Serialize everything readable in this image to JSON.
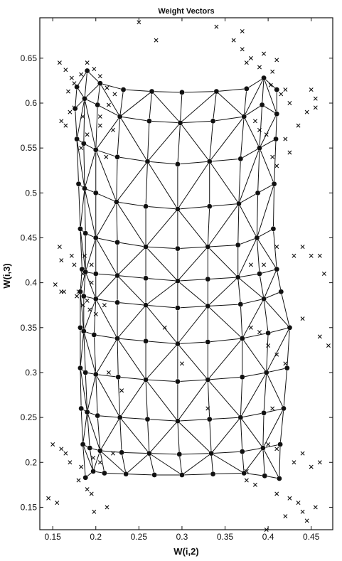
{
  "chart_data": {
    "type": "scatter",
    "title": "Weight Vectors",
    "xlabel": "W(i,2)",
    "ylabel": "W(i,3)",
    "xlim": [
      0.135,
      0.475
    ],
    "ylim": [
      0.125,
      0.695
    ],
    "xticks": [
      0.15,
      0.2,
      0.25,
      0.3,
      0.35,
      0.4,
      0.45
    ],
    "xtick_labels": [
      "0.15",
      "0.2",
      "0.25",
      "0.3",
      "0.35",
      "0.4",
      "0.45"
    ],
    "yticks": [
      0.15,
      0.2,
      0.25,
      0.3,
      0.35,
      0.4,
      0.45,
      0.5,
      0.55,
      0.6,
      0.65
    ],
    "ytick_labels": [
      "0.15",
      "0.2",
      "0.25",
      "0.3",
      "0.35",
      "0.4",
      "0.45",
      "0.5",
      "0.55",
      "0.6",
      "0.65"
    ],
    "grid": false,
    "colors": {
      "ink": "#111111",
      "background": "#ffffff"
    },
    "series": [
      {
        "marker": "x",
        "x": [
          0.158,
          0.165,
          0.172,
          0.168,
          0.175,
          0.183,
          0.19,
          0.198,
          0.205,
          0.213,
          0.222,
          0.215,
          0.175,
          0.185,
          0.205,
          0.205,
          0.19,
          0.16,
          0.165,
          0.17,
          0.178,
          0.183,
          0.212,
          0.22,
          0.158,
          0.16,
          0.172,
          0.185,
          0.195,
          0.18,
          0.19,
          0.163,
          0.175,
          0.187,
          0.195,
          0.153,
          0.16,
          0.178,
          0.185,
          0.193,
          0.2,
          0.21,
          0.15,
          0.16,
          0.165,
          0.17,
          0.183,
          0.197,
          0.205,
          0.22,
          0.18,
          0.19,
          0.195,
          0.145,
          0.155,
          0.198,
          0.213,
          0.37,
          0.375,
          0.38,
          0.39,
          0.395,
          0.405,
          0.41,
          0.403,
          0.415,
          0.42,
          0.425,
          0.45,
          0.455,
          0.385,
          0.39,
          0.398,
          0.42,
          0.435,
          0.445,
          0.455,
          0.405,
          0.41,
          0.425,
          0.43,
          0.44,
          0.38,
          0.39,
          0.395,
          0.41,
          0.45,
          0.46,
          0.465,
          0.38,
          0.39,
          0.4,
          0.41,
          0.42,
          0.44,
          0.46,
          0.47,
          0.4,
          0.41,
          0.43,
          0.44,
          0.45,
          0.46,
          0.375,
          0.385,
          0.41,
          0.425,
          0.435,
          0.455,
          0.398,
          0.42,
          0.44,
          0.445,
          0.375,
          0.405,
          0.36,
          0.37,
          0.34,
          0.25,
          0.27,
          0.3,
          0.28,
          0.33,
          0.23,
          0.215
        ],
        "y": [
          0.645,
          0.637,
          0.628,
          0.613,
          0.622,
          0.632,
          0.645,
          0.638,
          0.63,
          0.617,
          0.61,
          0.598,
          0.595,
          0.585,
          0.585,
          0.575,
          0.565,
          0.58,
          0.575,
          0.59,
          0.56,
          0.55,
          0.54,
          0.57,
          0.44,
          0.425,
          0.43,
          0.41,
          0.4,
          0.39,
          0.38,
          0.39,
          0.42,
          0.43,
          0.42,
          0.398,
          0.39,
          0.385,
          0.375,
          0.37,
          0.365,
          0.375,
          0.22,
          0.215,
          0.21,
          0.2,
          0.195,
          0.205,
          0.2,
          0.21,
          0.18,
          0.17,
          0.165,
          0.16,
          0.155,
          0.145,
          0.15,
          0.66,
          0.645,
          0.65,
          0.64,
          0.655,
          0.635,
          0.648,
          0.62,
          0.61,
          0.615,
          0.6,
          0.615,
          0.605,
          0.58,
          0.57,
          0.565,
          0.56,
          0.575,
          0.59,
          0.595,
          0.54,
          0.53,
          0.545,
          0.43,
          0.44,
          0.42,
          0.41,
          0.42,
          0.44,
          0.43,
          0.43,
          0.41,
          0.35,
          0.345,
          0.33,
          0.32,
          0.31,
          0.36,
          0.34,
          0.33,
          0.22,
          0.215,
          0.2,
          0.21,
          0.195,
          0.2,
          0.18,
          0.175,
          0.165,
          0.16,
          0.155,
          0.15,
          0.125,
          0.14,
          0.145,
          0.135,
          0.19,
          0.26,
          0.67,
          0.68,
          0.685,
          0.69,
          0.67,
          0.31,
          0.35,
          0.26,
          0.28,
          0.3
        ]
      },
      {
        "marker": "filled-circle",
        "grid_rows": 12,
        "grid_cols": 10,
        "nodes_x": [
          [
            0.178,
            0.19,
            0.205,
            0.232,
            0.265,
            0.3,
            0.34,
            0.375,
            0.395,
            0.41
          ],
          [
            0.176,
            0.187,
            0.202,
            0.228,
            0.262,
            0.298,
            0.336,
            0.372,
            0.393,
            0.41
          ],
          [
            0.178,
            0.186,
            0.2,
            0.225,
            0.26,
            0.295,
            0.332,
            0.368,
            0.39,
            0.409
          ],
          [
            0.18,
            0.187,
            0.2,
            0.224,
            0.258,
            0.295,
            0.332,
            0.366,
            0.388,
            0.407
          ],
          [
            0.182,
            0.188,
            0.2,
            0.225,
            0.258,
            0.295,
            0.33,
            0.365,
            0.387,
            0.406
          ],
          [
            0.184,
            0.188,
            0.2,
            0.225,
            0.258,
            0.295,
            0.33,
            0.365,
            0.39,
            0.41
          ],
          [
            0.182,
            0.186,
            0.2,
            0.225,
            0.258,
            0.295,
            0.33,
            0.368,
            0.395,
            0.415
          ],
          [
            0.182,
            0.186,
            0.198,
            0.225,
            0.258,
            0.295,
            0.33,
            0.37,
            0.4,
            0.425
          ],
          [
            0.182,
            0.188,
            0.2,
            0.226,
            0.258,
            0.295,
            0.33,
            0.37,
            0.398,
            0.422
          ],
          [
            0.183,
            0.19,
            0.202,
            0.228,
            0.26,
            0.295,
            0.332,
            0.368,
            0.395,
            0.418
          ],
          [
            0.185,
            0.193,
            0.205,
            0.23,
            0.262,
            0.297,
            0.334,
            0.37,
            0.394,
            0.414
          ],
          [
            0.188,
            0.197,
            0.21,
            0.235,
            0.268,
            0.3,
            0.336,
            0.372,
            0.396,
            0.413
          ]
        ],
        "nodes_y": [
          [
            0.618,
            0.636,
            0.622,
            0.615,
            0.613,
            0.612,
            0.613,
            0.616,
            0.628,
            0.615
          ],
          [
            0.594,
            0.605,
            0.598,
            0.585,
            0.58,
            0.578,
            0.58,
            0.585,
            0.598,
            0.588
          ],
          [
            0.56,
            0.555,
            0.548,
            0.54,
            0.535,
            0.532,
            0.535,
            0.538,
            0.55,
            0.56
          ],
          [
            0.51,
            0.505,
            0.5,
            0.49,
            0.485,
            0.482,
            0.485,
            0.488,
            0.5,
            0.51
          ],
          [
            0.46,
            0.455,
            0.45,
            0.445,
            0.44,
            0.438,
            0.44,
            0.442,
            0.45,
            0.46
          ],
          [
            0.415,
            0.412,
            0.41,
            0.408,
            0.405,
            0.402,
            0.404,
            0.406,
            0.41,
            0.415
          ],
          [
            0.39,
            0.385,
            0.382,
            0.378,
            0.375,
            0.372,
            0.374,
            0.376,
            0.382,
            0.39
          ],
          [
            0.35,
            0.346,
            0.342,
            0.338,
            0.335,
            0.332,
            0.334,
            0.338,
            0.344,
            0.35
          ],
          [
            0.305,
            0.3,
            0.298,
            0.295,
            0.292,
            0.29,
            0.292,
            0.295,
            0.3,
            0.305
          ],
          [
            0.26,
            0.256,
            0.252,
            0.25,
            0.248,
            0.246,
            0.248,
            0.25,
            0.255,
            0.26
          ],
          [
            0.22,
            0.216,
            0.213,
            0.211,
            0.21,
            0.209,
            0.21,
            0.212,
            0.216,
            0.22
          ],
          [
            0.183,
            0.19,
            0.188,
            0.187,
            0.186,
            0.186,
            0.187,
            0.188,
            0.185,
            0.182
          ]
        ]
      }
    ]
  }
}
